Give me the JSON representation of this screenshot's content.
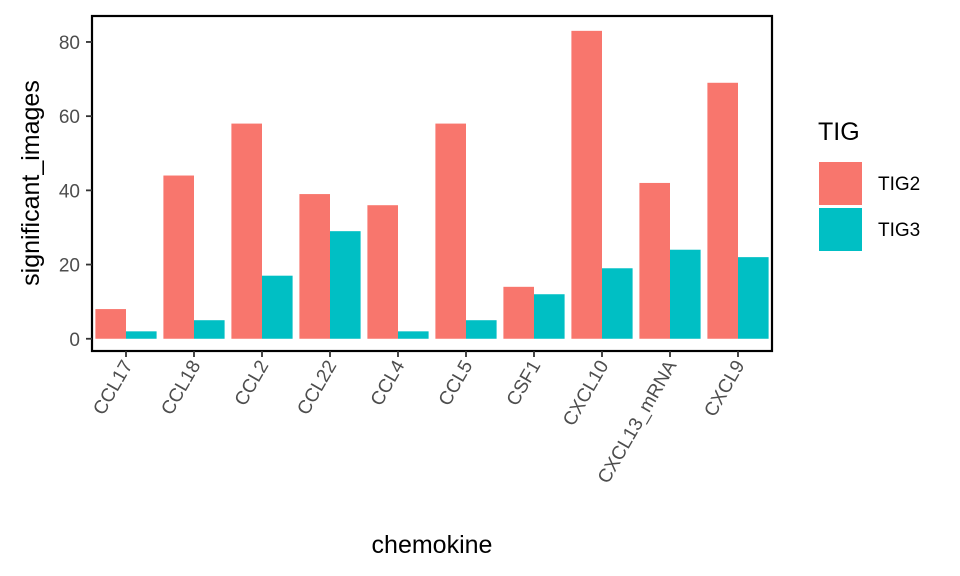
{
  "chart_data": {
    "type": "bar",
    "categories": [
      "CCL17",
      "CCL18",
      "CCL2",
      "CCL22",
      "CCL4",
      "CCL5",
      "CSF1",
      "CXCL10",
      "CXCL13_mRNA",
      "CXCL9"
    ],
    "series": [
      {
        "name": "TIG2",
        "color": "#F8766D",
        "values": [
          8,
          44,
          58,
          39,
          36,
          58,
          14,
          83,
          42,
          69
        ]
      },
      {
        "name": "TIG3",
        "color": "#00BFC4",
        "values": [
          2,
          5,
          17,
          29,
          2,
          5,
          12,
          19,
          24,
          22
        ]
      }
    ],
    "xlabel": "chemokine",
    "ylabel": "significant_images",
    "ylim": [
      -3.3,
      87
    ],
    "yticks": [
      0,
      20,
      40,
      60,
      80
    ],
    "grid": false,
    "legend": {
      "title": "TIG",
      "placement": "right"
    }
  }
}
